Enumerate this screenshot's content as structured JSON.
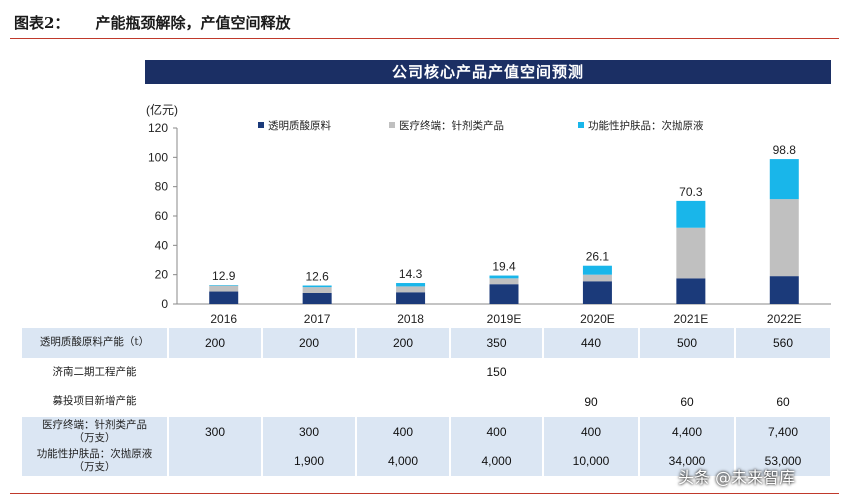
{
  "figure": {
    "number": "图表2：",
    "title": "产能瓶颈解除，产值空间释放"
  },
  "banner_title": "公司核心产品产值空间预测",
  "watermark": "头条 @未来智库",
  "colors": {
    "raw_material": "#1b3a7a",
    "medical": "#c0c0c0",
    "skincare": "#19b6ea",
    "banner": "#1b2f64",
    "rule": "#c0392b"
  },
  "chart_data": {
    "type": "bar",
    "stacked": true,
    "ylabel": "(亿元)",
    "ylim": [
      0,
      120
    ],
    "yticks": [
      0,
      20,
      40,
      60,
      80,
      100,
      120
    ],
    "categories": [
      "2016",
      "2017",
      "2018",
      "2019E",
      "2020E",
      "2021E",
      "2022E"
    ],
    "series": [
      {
        "name": "透明质酸原料",
        "values": [
          8.5,
          7.5,
          8.0,
          13.5,
          15.5,
          17.5,
          19.0
        ]
      },
      {
        "name": "医疗终端：针剂类产品",
        "values": [
          4.0,
          4.0,
          4.0,
          4.0,
          4.5,
          34.5,
          52.5
        ]
      },
      {
        "name": "功能性护肤品：次抛原液",
        "values": [
          0.4,
          1.1,
          2.3,
          1.9,
          6.1,
          18.3,
          27.3
        ]
      }
    ],
    "totals": [
      "12.9",
      "12.6",
      "14.3",
      "19.4",
      "26.1",
      "70.3",
      "98.8"
    ]
  },
  "table": {
    "rows": [
      {
        "label": "透明质酸原料产能（t）",
        "values": [
          "200",
          "200",
          "200",
          "350",
          "440",
          "500",
          "560"
        ]
      },
      {
        "label": "济南二期工程产能",
        "values": [
          "",
          "",
          "",
          "150",
          "",
          "",
          ""
        ]
      },
      {
        "label": "募投项目新增产能",
        "values": [
          "",
          "",
          "",
          "",
          "90",
          "60",
          "60"
        ]
      },
      {
        "label": "医疗终端：针剂类产品\n（万支）",
        "values": [
          "300",
          "300",
          "400",
          "400",
          "400",
          "4,400",
          "7,400"
        ]
      },
      {
        "label": "功能性护肤品：次抛原液\n（万支）",
        "values": [
          "",
          "1,900",
          "4,000",
          "4,000",
          "10,000",
          "34,000",
          "53,000"
        ]
      }
    ]
  }
}
